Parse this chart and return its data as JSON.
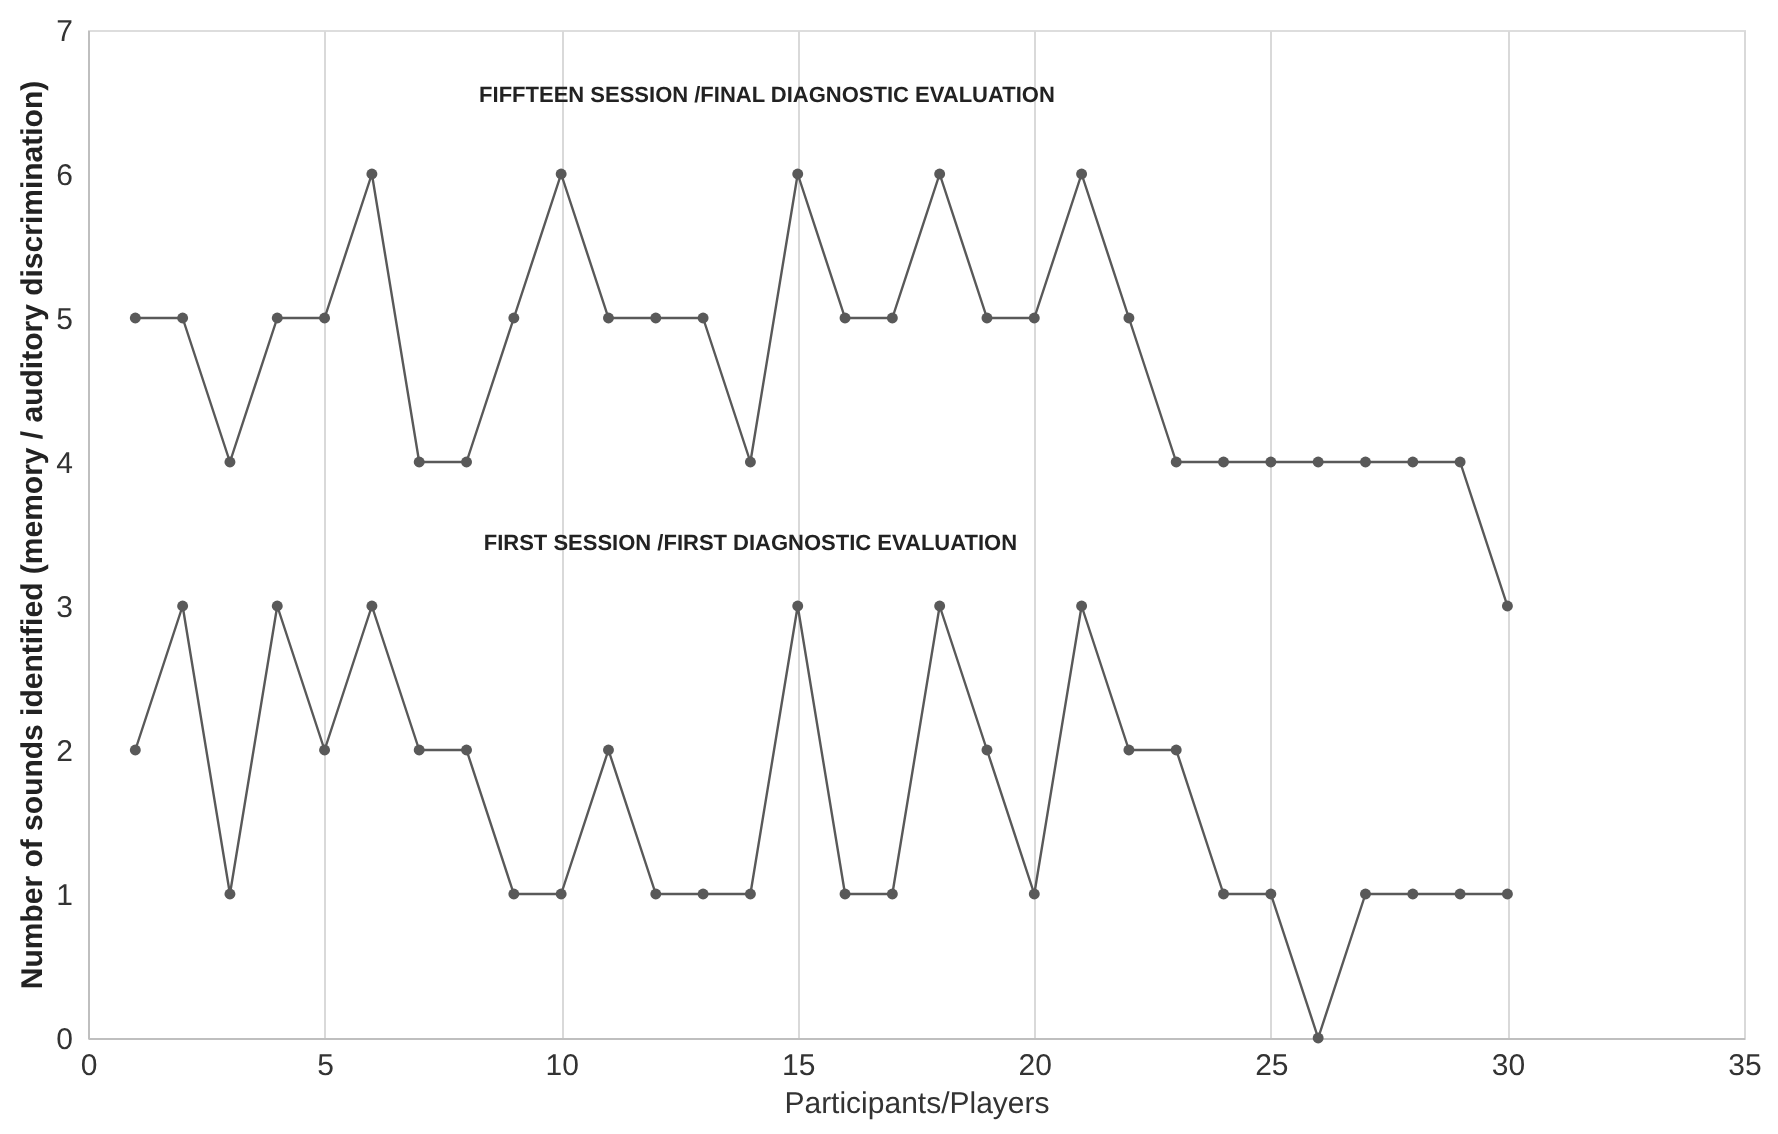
{
  "chart_data": {
    "type": "line",
    "xlabel": "Participants/Players",
    "ylabel": "Number of sounds identified (memory / auditory discrimination)",
    "x": [
      1,
      2,
      3,
      4,
      5,
      6,
      7,
      8,
      9,
      10,
      11,
      12,
      13,
      14,
      15,
      16,
      17,
      18,
      19,
      20,
      21,
      22,
      23,
      24,
      25,
      26,
      27,
      28,
      29,
      30
    ],
    "series": [
      {
        "color": "#595959",
        "values": [
          5,
          5,
          4,
          5,
          5,
          6,
          4,
          4,
          5,
          6,
          5,
          5,
          5,
          4,
          6,
          5,
          5,
          6,
          5,
          5,
          6,
          5,
          4,
          4,
          4,
          4,
          4,
          4,
          4,
          3
        ]
      },
      {
        "color": "#595959",
        "values": [
          2,
          3,
          1,
          3,
          2,
          3,
          2,
          2,
          1,
          1,
          2,
          1,
          1,
          1,
          3,
          1,
          1,
          3,
          2,
          1,
          3,
          2,
          2,
          1,
          1,
          0,
          1,
          1,
          1,
          1
        ]
      }
    ],
    "annotations": [
      "FIFFTEEN SESSION /FINAL DIAGNOSTIC EVALUATION",
      "FIRST SESSION /FIRST DIAGNOSTIC EVALUATION"
    ],
    "xlim": [
      0,
      35
    ],
    "xticks": [
      0,
      5,
      10,
      15,
      20,
      25,
      30,
      35
    ],
    "ylim": [
      0,
      7
    ],
    "yticks": [
      0,
      1,
      2,
      3,
      4,
      5,
      6,
      7
    ],
    "grid": "x",
    "marker": "circle",
    "line_style": "solid"
  }
}
